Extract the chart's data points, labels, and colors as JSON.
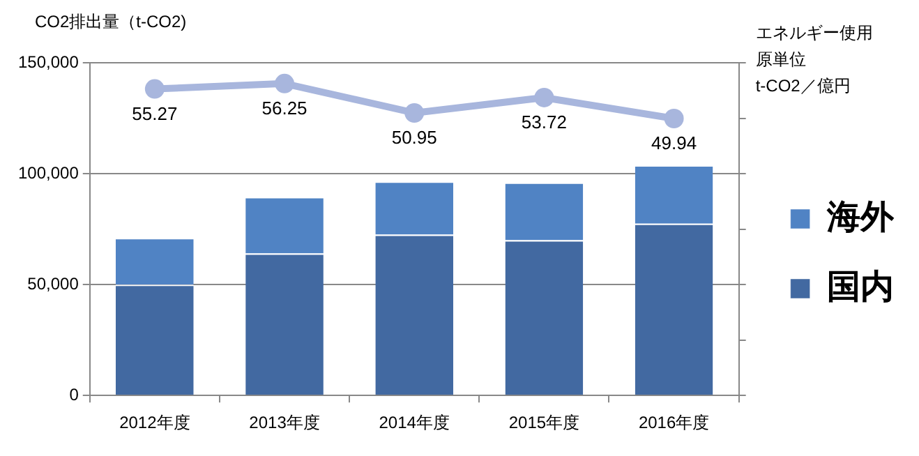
{
  "chart_data": {
    "type": "bar",
    "stacked": true,
    "ylabel": "CO2排出量（t-CO2)",
    "y2label": "エネルギー使用原単位t-CO2／億円",
    "categories": [
      "2012年度",
      "2013年度",
      "2014年度",
      "2015年度",
      "2016年度"
    ],
    "series": [
      {
        "name": "国内",
        "color": "#4269a1",
        "values": [
          50000,
          64000,
          72500,
          70000,
          77500
        ]
      },
      {
        "name": "海外",
        "color": "#5083c4",
        "values": [
          21000,
          25500,
          24000,
          26000,
          26300
        ]
      },
      {
        "type": "line",
        "axis": "y2",
        "color": "#a8b6dd",
        "values": [
          55.27,
          56.25,
          50.95,
          53.72,
          49.94
        ],
        "value_labels": [
          "55.27",
          "56.25",
          "50.95",
          "53.72",
          "49.94"
        ]
      }
    ],
    "ylim": [
      0,
      150000
    ],
    "yticks": [
      {
        "value": 0,
        "label": "0"
      },
      {
        "value": 50000,
        "label": "50,000"
      },
      {
        "value": 100000,
        "label": "100,000"
      },
      {
        "value": 150000,
        "label": "150,000"
      }
    ],
    "y2lim": [
      0,
      60
    ],
    "y2ticks": [
      {
        "value": 0,
        "label": null
      },
      {
        "value": 10,
        "label": null
      },
      {
        "value": 20,
        "label": null
      },
      {
        "value": 30,
        "label": null
      },
      {
        "value": 40,
        "label": null
      },
      {
        "value": 50,
        "label": null
      },
      {
        "value": 60,
        "label": null
      }
    ],
    "grid": "y",
    "legend": "right",
    "marker": "circle",
    "line_style": "solid"
  }
}
